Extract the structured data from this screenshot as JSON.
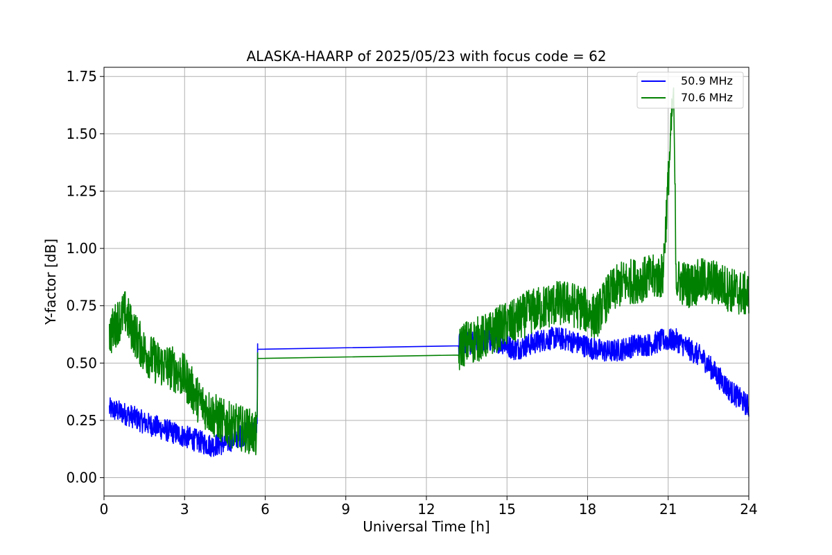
{
  "chart_data": {
    "type": "line",
    "title": "ALASKA-HAARP of 2025/05/23 with focus code = 62",
    "xlabel": "Universal Time [h]",
    "ylabel": "Y-factor [dB]",
    "xlim": [
      0,
      24
    ],
    "ylim": [
      -0.08,
      1.79
    ],
    "xticks": [
      0,
      3,
      6,
      9,
      12,
      15,
      18,
      21,
      24
    ],
    "xtick_labels": [
      "0",
      "3",
      "6",
      "9",
      "12",
      "15",
      "18",
      "21",
      "24"
    ],
    "yticks": [
      0.0,
      0.25,
      0.5,
      0.75,
      1.0,
      1.25,
      1.5,
      1.75
    ],
    "ytick_labels": [
      "0.00",
      "0.25",
      "0.50",
      "0.75",
      "1.00",
      "1.25",
      "1.50",
      "1.75"
    ],
    "grid": true,
    "legend_position": "top-right",
    "series": [
      {
        "name": "50.9 MHz",
        "color": "#0000ff",
        "x": [
          0.2,
          0.5,
          1.0,
          1.5,
          2.0,
          2.5,
          3.0,
          3.5,
          4.0,
          4.5,
          5.0,
          5.5,
          5.7,
          5.72,
          13.2,
          13.3,
          13.8,
          14.3,
          14.8,
          15.3,
          15.8,
          16.3,
          16.8,
          17.3,
          17.8,
          18.3,
          18.8,
          19.3,
          19.8,
          20.3,
          20.8,
          21.3,
          21.8,
          22.3,
          22.8,
          23.3,
          23.8,
          24.0
        ],
        "y": [
          0.3,
          0.29,
          0.27,
          0.24,
          0.22,
          0.2,
          0.18,
          0.16,
          0.14,
          0.15,
          0.18,
          0.2,
          0.22,
          0.56,
          0.575,
          0.58,
          0.59,
          0.6,
          0.59,
          0.56,
          0.58,
          0.6,
          0.61,
          0.6,
          0.58,
          0.56,
          0.55,
          0.56,
          0.58,
          0.58,
          0.6,
          0.6,
          0.56,
          0.52,
          0.45,
          0.38,
          0.33,
          0.31
        ],
        "noise_amplitude": 0.05
      },
      {
        "name": "70.6 MHz",
        "color": "#008000",
        "x": [
          0.2,
          0.5,
          0.8,
          1.0,
          1.5,
          2.0,
          2.5,
          3.0,
          3.5,
          4.0,
          4.5,
          5.0,
          5.5,
          5.7,
          5.72,
          13.2,
          13.3,
          13.8,
          14.3,
          14.8,
          15.3,
          15.8,
          16.3,
          16.8,
          17.3,
          17.8,
          18.3,
          18.8,
          19.3,
          19.8,
          20.3,
          20.8,
          21.2,
          21.3,
          21.8,
          22.3,
          22.8,
          23.3,
          23.8,
          24.0
        ],
        "y": [
          0.62,
          0.68,
          0.72,
          0.66,
          0.55,
          0.5,
          0.48,
          0.44,
          0.34,
          0.28,
          0.24,
          0.22,
          0.2,
          0.18,
          0.52,
          0.535,
          0.58,
          0.6,
          0.62,
          0.66,
          0.68,
          0.72,
          0.74,
          0.76,
          0.76,
          0.74,
          0.7,
          0.8,
          0.85,
          0.86,
          0.87,
          0.88,
          1.7,
          0.86,
          0.84,
          0.86,
          0.85,
          0.82,
          0.8,
          0.8
        ],
        "noise_amplitude": 0.1
      }
    ]
  }
}
